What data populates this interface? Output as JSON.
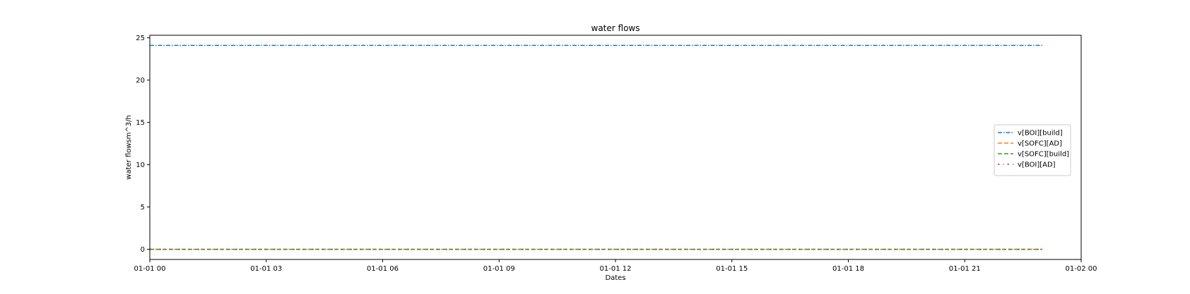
{
  "chart_data": {
    "type": "line",
    "title": "water flows",
    "xlabel": "Dates",
    "ylabel": "water flowsm^3/h",
    "x_range": [
      "2017-01-01T00:00",
      "2017-01-02T00:00"
    ],
    "ylim": [
      -1.2,
      25.3
    ],
    "x": [
      "2017-01-01T00:00",
      "2017-01-01T23:00"
    ],
    "x_ticks": [
      {
        "at": "2017-01-01T00:00",
        "label": "01-01 00"
      },
      {
        "at": "2017-01-01T03:00",
        "label": "01-01 03"
      },
      {
        "at": "2017-01-01T06:00",
        "label": "01-01 06"
      },
      {
        "at": "2017-01-01T09:00",
        "label": "01-01 09"
      },
      {
        "at": "2017-01-01T12:00",
        "label": "01-01 12"
      },
      {
        "at": "2017-01-01T15:00",
        "label": "01-01 15"
      },
      {
        "at": "2017-01-01T18:00",
        "label": "01-01 18"
      },
      {
        "at": "2017-01-01T21:00",
        "label": "01-01 21"
      },
      {
        "at": "2017-01-02T00:00",
        "label": "01-02 00"
      }
    ],
    "y_ticks": [
      0,
      5,
      10,
      15,
      20,
      25
    ],
    "grid": false,
    "legend_position": "center-right",
    "series": [
      {
        "name": "v[BOI][build]",
        "values": [
          24.1,
          24.1
        ],
        "color": "#1f77b4",
        "style": "dashdot"
      },
      {
        "name": "v[SOFC][AD]",
        "values": [
          0,
          0
        ],
        "color": "#ff7f0e",
        "style": "dashed"
      },
      {
        "name": "v[SOFC][build]",
        "values": [
          0,
          0
        ],
        "color": "#2ca02c",
        "style": "dashed"
      },
      {
        "name": "v[BOI][AD]",
        "values": [
          0,
          0
        ],
        "color": "#d62728",
        "style": "dashdot-sparse"
      }
    ]
  }
}
